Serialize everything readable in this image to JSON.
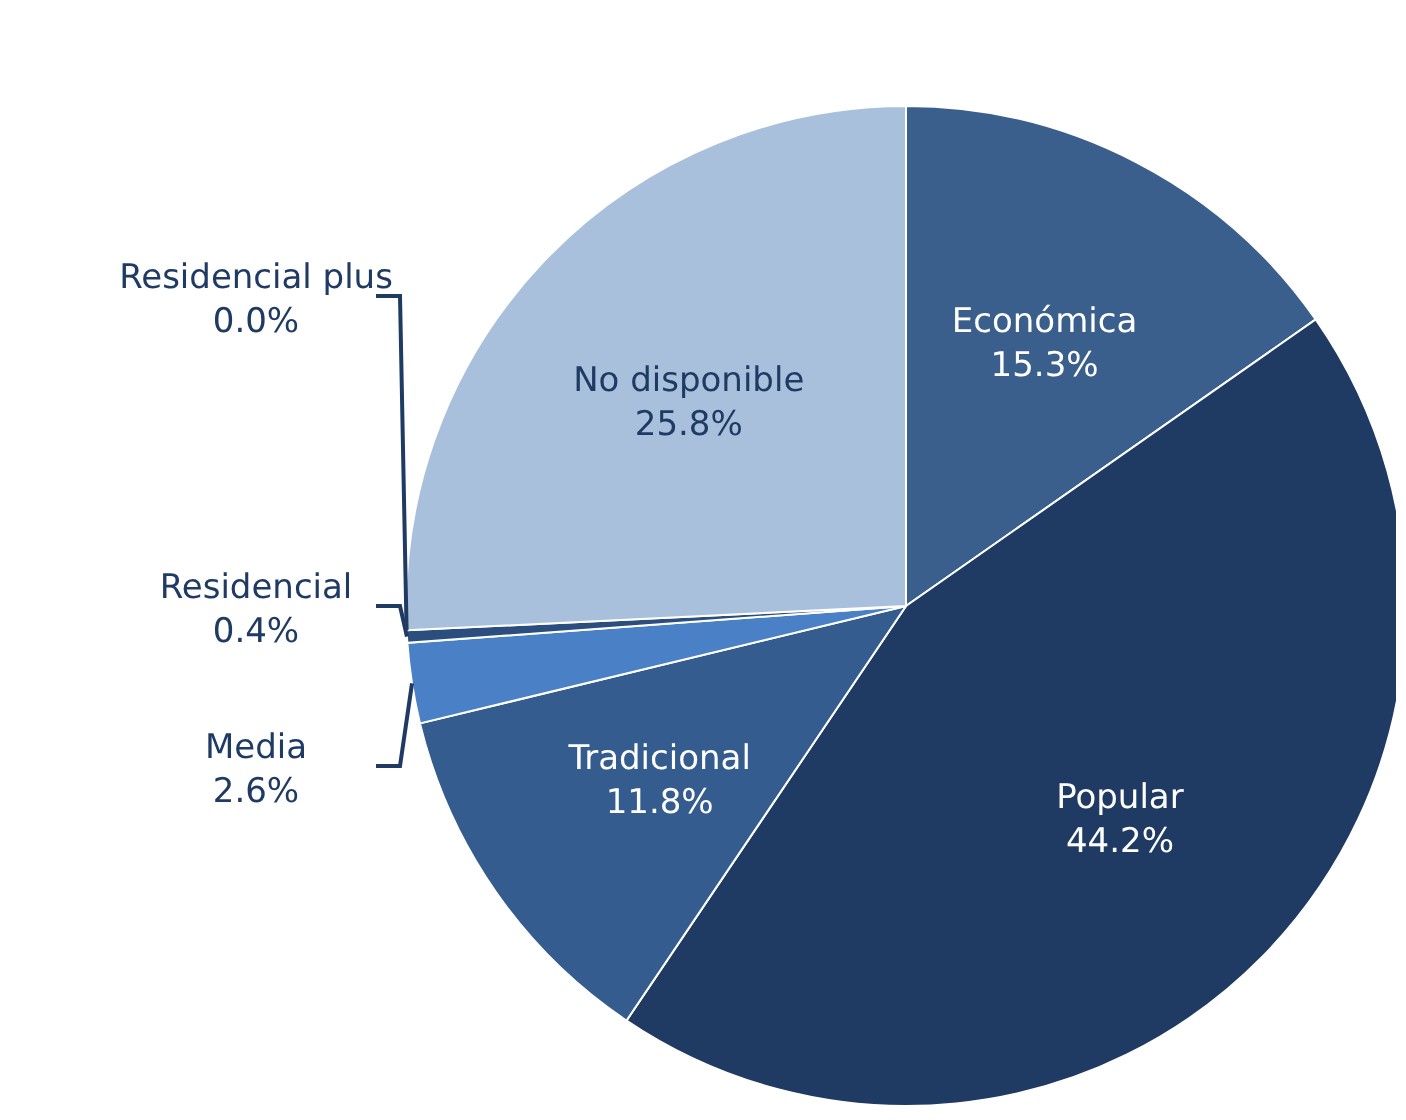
{
  "chart_data": {
    "type": "pie",
    "categories": [
      "Económica",
      "Popular",
      "Tradicional",
      "Media",
      "Residencial",
      "Residencial plus",
      "No disponible"
    ],
    "values": [
      15.3,
      44.2,
      11.8,
      2.6,
      0.4,
      0.0,
      25.8
    ],
    "colors": [
      "#3a5f8c",
      "#1f3a63",
      "#355c8f",
      "#4a80c6",
      "#2c4e7e",
      "#2c4e7e",
      "#a9c0dc"
    ],
    "value_labels": [
      "15.3%",
      "44.2%",
      "11.8%",
      "2.6%",
      "0.4%",
      "0.0%",
      "25.8%"
    ]
  }
}
